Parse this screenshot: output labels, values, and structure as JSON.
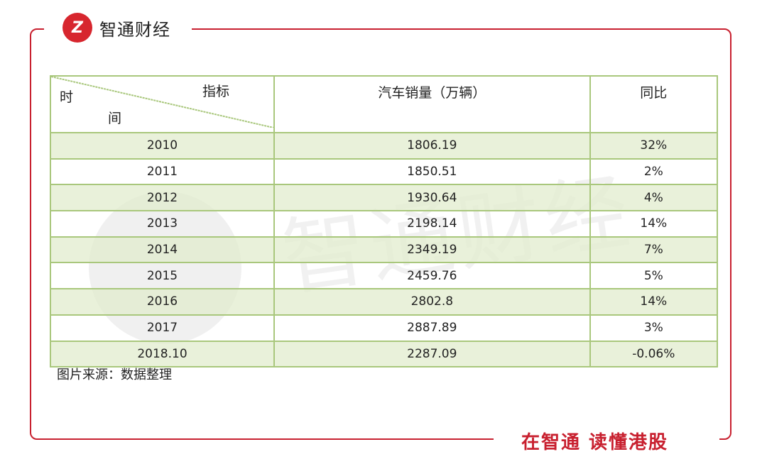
{
  "brand": {
    "logo_mark": "Z",
    "name": "智通财经",
    "slogan": "在智通  读懂港股",
    "accent": "#c8202f"
  },
  "watermark": {
    "text": "智通财经"
  },
  "table": {
    "header_diag_top": "指标",
    "header_diag_left": "时",
    "header_diag_bottom": "间",
    "columns": [
      "汽车销量（万辆）",
      "同比"
    ],
    "rows": [
      [
        "2010",
        "1806.19",
        "32%"
      ],
      [
        "2011",
        "1850.51",
        "2%"
      ],
      [
        "2012",
        "1930.64",
        "4%"
      ],
      [
        "2013",
        "2198.14",
        "14%"
      ],
      [
        "2014",
        "2349.19",
        "7%"
      ],
      [
        "2015",
        "2459.76",
        "5%"
      ],
      [
        "2016",
        "2802.8",
        "14%"
      ],
      [
        "2017",
        "2887.89",
        "3%"
      ],
      [
        "2018.10",
        "2287.09",
        "-0.06%"
      ]
    ]
  },
  "source": "图片来源：数据整理"
}
